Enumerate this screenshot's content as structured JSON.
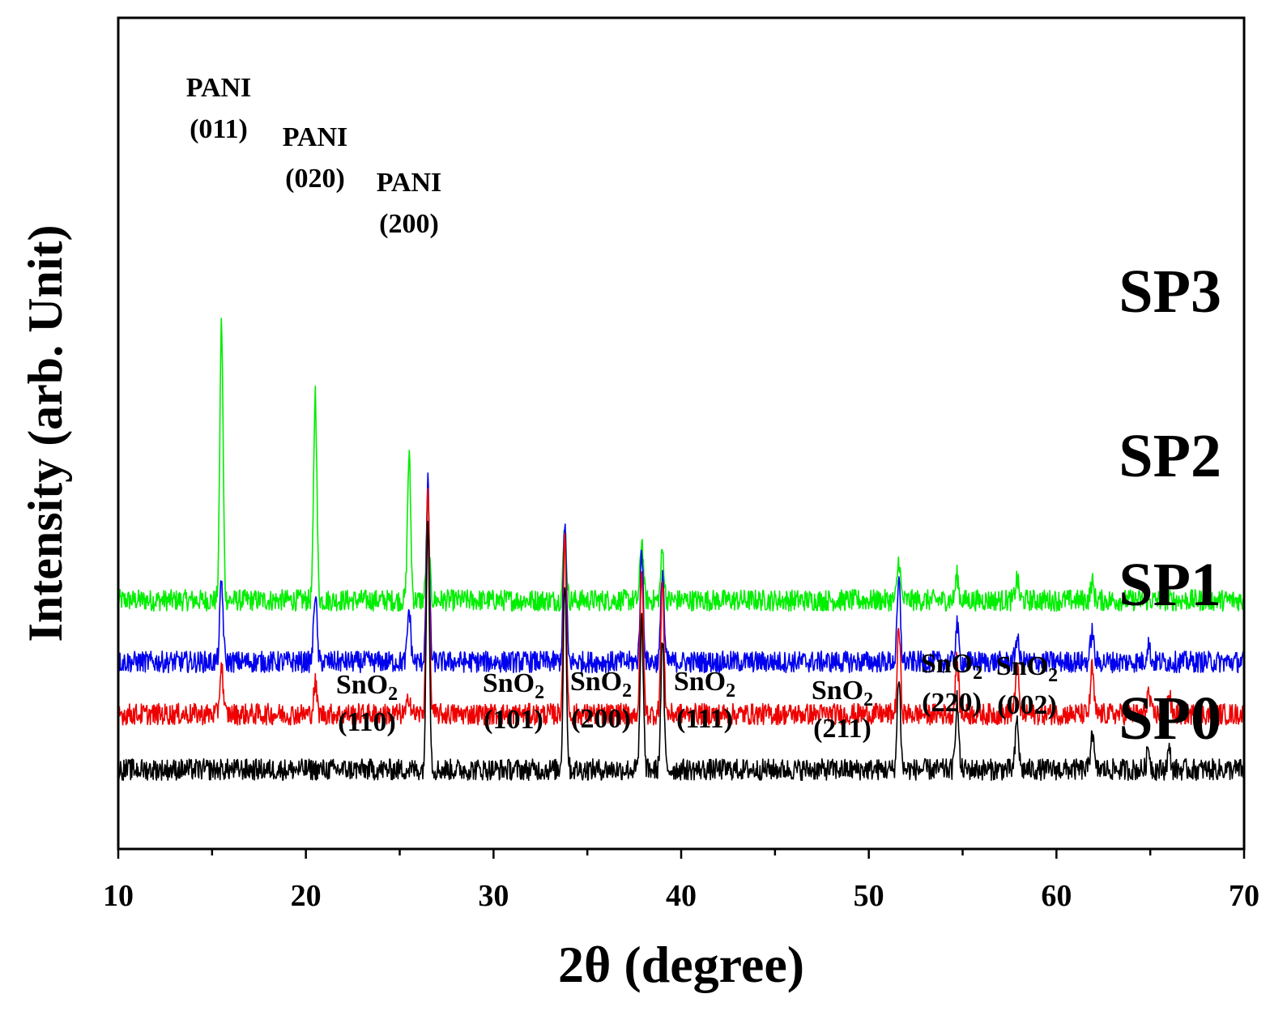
{
  "chart_data": {
    "type": "line",
    "xlabel": "2θ (degree)",
    "ylabel": "Intensity (arb. Unit)",
    "xlim": [
      10,
      70
    ],
    "xticks": [
      "10",
      "20",
      "30",
      "40",
      "50",
      "60",
      "70"
    ],
    "y_ticks_shown": false,
    "series": [
      {
        "name": "SP3",
        "color": "#00ee00",
        "baseline": 0.55,
        "noise": 0.035,
        "peaks": [
          [
            15.5,
            0.9
          ],
          [
            20.5,
            0.68
          ],
          [
            25.5,
            0.47
          ],
          [
            26.5,
            0.3
          ],
          [
            33.8,
            0.24
          ],
          [
            37.9,
            0.2
          ],
          [
            39.0,
            0.16
          ],
          [
            51.6,
            0.13
          ],
          [
            54.7,
            0.08
          ],
          [
            57.9,
            0.07
          ],
          [
            61.9,
            0.06
          ]
        ]
      },
      {
        "name": "SP2",
        "color": "#0000ee",
        "baseline": 0.35,
        "noise": 0.035,
        "peaks": [
          [
            15.5,
            0.26
          ],
          [
            20.5,
            0.23
          ],
          [
            25.5,
            0.17
          ],
          [
            26.5,
            0.58
          ],
          [
            33.8,
            0.45
          ],
          [
            37.9,
            0.36
          ],
          [
            39.0,
            0.3
          ],
          [
            51.6,
            0.26
          ],
          [
            54.7,
            0.12
          ],
          [
            57.9,
            0.08
          ],
          [
            61.9,
            0.1
          ],
          [
            64.9,
            0.06
          ]
        ]
      },
      {
        "name": "SP1",
        "color": "#ee0000",
        "baseline": 0.18,
        "noise": 0.035,
        "peaks": [
          [
            15.5,
            0.16
          ],
          [
            20.5,
            0.1
          ],
          [
            25.5,
            0.06
          ],
          [
            26.5,
            0.74
          ],
          [
            33.8,
            0.56
          ],
          [
            37.9,
            0.47
          ],
          [
            39.0,
            0.42
          ],
          [
            51.6,
            0.28
          ],
          [
            54.7,
            0.18
          ],
          [
            57.9,
            0.16
          ],
          [
            61.9,
            0.15
          ],
          [
            64.9,
            0.07
          ],
          [
            66.0,
            0.06
          ]
        ]
      },
      {
        "name": "SP0",
        "color": "#000000",
        "baseline": 0.0,
        "noise": 0.035,
        "peaks": [
          [
            26.5,
            0.84
          ],
          [
            33.8,
            0.62
          ],
          [
            37.9,
            0.49
          ],
          [
            39.0,
            0.42
          ],
          [
            51.6,
            0.31
          ],
          [
            54.7,
            0.23
          ],
          [
            57.9,
            0.16
          ],
          [
            61.9,
            0.13
          ],
          [
            64.9,
            0.07
          ],
          [
            66.0,
            0.06
          ]
        ]
      }
    ],
    "pani_annotations": [
      {
        "x": 15.5,
        "name": "PANI",
        "hkl": "(011)"
      },
      {
        "x": 20.5,
        "name": "PANI",
        "hkl": "(020)"
      },
      {
        "x": 25.5,
        "name": "PANI",
        "hkl": "(200)"
      }
    ],
    "sno2_annotations": [
      {
        "x": 26.5,
        "name": "SnO",
        "sub": "2",
        "hkl": "(110)"
      },
      {
        "x": 33.8,
        "name": "SnO",
        "sub": "2",
        "hkl": "(101)"
      },
      {
        "x": 37.9,
        "name": "SnO",
        "sub": "2",
        "hkl": "(200)"
      },
      {
        "x": 39.0,
        "name": "SnO",
        "sub": "2",
        "hkl": "(111)"
      },
      {
        "x": 51.6,
        "name": "SnO",
        "sub": "2",
        "hkl": "(211)"
      },
      {
        "x": 54.7,
        "name": "SnO",
        "sub": "2",
        "hkl": "(220)"
      },
      {
        "x": 57.9,
        "name": "SnO",
        "sub": "2",
        "hkl": "(002)"
      }
    ]
  }
}
